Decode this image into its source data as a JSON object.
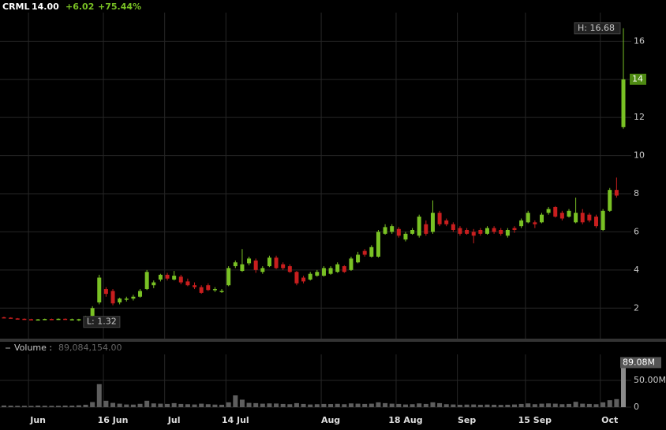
{
  "chart_data": {
    "type": "candlestick",
    "symbol": "CRML",
    "last": "14.00",
    "change": "+6.02",
    "change_pct": "+75.44%",
    "categories": [
      null,
      null,
      null,
      null,
      null,
      "Jun",
      null,
      null,
      null,
      null,
      null,
      null,
      null,
      null,
      null,
      null,
      "16 Jun",
      null,
      null,
      null,
      null,
      null,
      null,
      null,
      null,
      "Jul",
      null,
      null,
      null,
      null,
      null,
      null,
      null,
      null,
      "14 Jul",
      null,
      null,
      null,
      null,
      null,
      null,
      null,
      null,
      null,
      null,
      null,
      null,
      null,
      "Aug",
      null,
      null,
      null,
      null,
      null,
      null,
      null,
      null,
      null,
      null,
      "18 Aug",
      null,
      null,
      null,
      null,
      null,
      null,
      null,
      null,
      "Sep",
      null,
      null,
      null,
      null,
      null,
      null,
      null,
      null,
      null,
      "15 Sep",
      null,
      null,
      null,
      null,
      null,
      null,
      null,
      null,
      null,
      null,
      "Oct",
      null,
      null
    ],
    "open": [
      1.52,
      1.5,
      1.46,
      1.44,
      1.42,
      1.4,
      1.41,
      1.43,
      1.4,
      1.44,
      1.41,
      1.4,
      1.45,
      1.6,
      2.3,
      3.0,
      2.9,
      2.3,
      2.45,
      2.5,
      2.6,
      3.0,
      3.2,
      3.5,
      3.75,
      3.5,
      3.65,
      3.4,
      3.2,
      3.1,
      3.2,
      2.95,
      2.9,
      3.2,
      4.2,
      3.95,
      4.35,
      4.5,
      3.9,
      4.2,
      4.65,
      4.3,
      4.2,
      3.9,
      3.6,
      3.5,
      3.7,
      3.7,
      3.8,
      3.9,
      4.2,
      4.0,
      4.4,
      5.0,
      4.7,
      4.7,
      5.9,
      6.0,
      6.15,
      5.6,
      5.9,
      5.8,
      6.4,
      6.0,
      7.0,
      6.6,
      6.4,
      6.2,
      6.1,
      6.0,
      6.1,
      5.9,
      6.2,
      6.1,
      5.8,
      6.2,
      6.3,
      6.5,
      6.5,
      6.5,
      7.0,
      7.3,
      7.0,
      6.8,
      6.5,
      7.0,
      6.9,
      6.8,
      6.1,
      7.1,
      8.2,
      11.5
    ],
    "high": [
      1.55,
      1.52,
      1.48,
      1.46,
      1.44,
      1.43,
      1.45,
      1.45,
      1.46,
      1.46,
      1.45,
      1.44,
      1.6,
      2.1,
      3.75,
      3.1,
      3.0,
      2.55,
      2.6,
      2.7,
      3.0,
      4.0,
      3.45,
      3.8,
      3.85,
      3.95,
      3.75,
      3.55,
      3.35,
      3.2,
      3.3,
      3.1,
      3.0,
      4.2,
      4.5,
      5.1,
      4.7,
      4.6,
      4.2,
      4.75,
      4.75,
      4.4,
      4.3,
      3.95,
      3.7,
      3.9,
      4.0,
      4.2,
      4.2,
      4.4,
      4.25,
      4.7,
      4.95,
      5.1,
      5.3,
      6.1,
      6.4,
      6.4,
      6.25,
      6.0,
      6.2,
      6.9,
      6.6,
      7.65,
      7.1,
      6.7,
      6.5,
      6.3,
      6.2,
      6.15,
      6.2,
      6.3,
      6.3,
      6.2,
      6.2,
      6.3,
      6.7,
      7.1,
      6.6,
      7.0,
      7.3,
      7.35,
      7.1,
      7.2,
      7.8,
      7.2,
      7.0,
      6.9,
      7.2,
      8.3,
      8.85,
      16.68
    ],
    "low": [
      1.48,
      1.46,
      1.42,
      1.4,
      1.39,
      1.38,
      1.39,
      1.39,
      1.38,
      1.39,
      1.36,
      1.32,
      1.42,
      1.55,
      2.2,
      2.6,
      2.15,
      2.2,
      2.35,
      2.4,
      2.55,
      2.95,
      3.05,
      3.4,
      3.45,
      3.45,
      3.25,
      3.15,
      3.0,
      2.75,
      2.9,
      2.85,
      2.8,
      3.15,
      4.1,
      3.9,
      4.25,
      3.85,
      3.8,
      4.15,
      4.05,
      4.0,
      3.85,
      3.2,
      3.3,
      3.45,
      3.65,
      3.65,
      3.75,
      3.85,
      3.85,
      3.95,
      4.35,
      4.7,
      4.65,
      4.65,
      5.85,
      5.9,
      5.7,
      5.5,
      5.85,
      5.7,
      5.8,
      5.9,
      6.3,
      6.3,
      6.0,
      5.8,
      5.85,
      5.4,
      5.8,
      5.85,
      5.9,
      5.8,
      5.7,
      5.95,
      6.2,
      6.45,
      6.2,
      6.45,
      6.9,
      6.75,
      6.6,
      6.75,
      6.45,
      6.4,
      6.5,
      6.2,
      6.05,
      7.05,
      7.8,
      11.4
    ],
    "close": [
      1.5,
      1.47,
      1.44,
      1.42,
      1.41,
      1.41,
      1.43,
      1.4,
      1.44,
      1.41,
      1.42,
      1.42,
      1.55,
      2.0,
      3.6,
      2.75,
      2.25,
      2.5,
      2.5,
      2.6,
      2.9,
      3.9,
      3.35,
      3.75,
      3.55,
      3.7,
      3.35,
      3.2,
      3.1,
      2.8,
      2.95,
      3.0,
      2.9,
      4.1,
      4.4,
      4.3,
      4.6,
      4.0,
      4.1,
      4.65,
      4.1,
      4.1,
      3.9,
      3.3,
      3.4,
      3.8,
      3.9,
      4.1,
      4.1,
      4.3,
      3.9,
      4.6,
      4.8,
      4.8,
      5.2,
      6.0,
      6.25,
      6.3,
      5.8,
      5.9,
      6.1,
      6.8,
      5.9,
      7.0,
      6.4,
      6.4,
      6.1,
      5.9,
      5.9,
      5.8,
      5.9,
      6.2,
      6.0,
      5.9,
      6.1,
      6.1,
      6.6,
      7.0,
      6.4,
      6.9,
      7.2,
      6.8,
      6.7,
      7.1,
      7.0,
      6.5,
      6.6,
      6.3,
      7.1,
      8.2,
      7.9,
      14.0
    ],
    "up_color": "#79c124",
    "down_color": "#c81e1e",
    "ylim": [
      0.4,
      17.5
    ],
    "yticks": [
      2,
      4,
      6,
      8,
      10,
      12,
      14,
      16
    ],
    "grid": true,
    "high_label": "H: 16.68",
    "low_label": "L: 1.32",
    "last_price": 14,
    "volume": {
      "label": "Volume :",
      "header_value": "89,084,154.00",
      "color": "#5e5e5e",
      "values": [
        3100000,
        2800000,
        2500000,
        2600000,
        2400000,
        3000000,
        2700000,
        2500000,
        2600000,
        3000000,
        2900000,
        3500000,
        4500000,
        9500000,
        43000000,
        12000000,
        8000000,
        6500000,
        5000000,
        4800000,
        6200000,
        12000000,
        7000000,
        6500000,
        6000000,
        7500000,
        6000000,
        5500000,
        5000000,
        6500000,
        5500000,
        4800000,
        4500000,
        9000000,
        22000000,
        14000000,
        8000000,
        7500000,
        6500000,
        7000000,
        6800000,
        6000000,
        5500000,
        7500000,
        6000000,
        5000000,
        5500000,
        6000000,
        5800000,
        6200000,
        5500000,
        7000000,
        6500000,
        6000000,
        6500000,
        9000000,
        7500000,
        6500000,
        6000000,
        5000000,
        5500000,
        7000000,
        6000000,
        9000000,
        7500000,
        5500000,
        5000000,
        4500000,
        4800000,
        5000000,
        4500000,
        4800000,
        4500000,
        4200000,
        4500000,
        5000000,
        6000000,
        7000000,
        5500000,
        6500000,
        7000000,
        6500000,
        5500000,
        6000000,
        10000000,
        6500000,
        6000000,
        5500000,
        9000000,
        13000000,
        15000000,
        89084154
      ],
      "value_labels": [
        null,
        null,
        null,
        null,
        null,
        null,
        null,
        null,
        null,
        null,
        null,
        null,
        null,
        null,
        null,
        null,
        null,
        null,
        null,
        null,
        null,
        null,
        null,
        null,
        null,
        null,
        null,
        null,
        null,
        null,
        null,
        null,
        null,
        null,
        null,
        null,
        null,
        null,
        null,
        null,
        null,
        null,
        null,
        null,
        null,
        null,
        null,
        null,
        null,
        null,
        null,
        null,
        null,
        null,
        null,
        null,
        null,
        null,
        null,
        null,
        null,
        null,
        null,
        null,
        null,
        null,
        null,
        null,
        null,
        null,
        null,
        null,
        null,
        null,
        null,
        null,
        null,
        null,
        null,
        null,
        null,
        null,
        null,
        null,
        null,
        null,
        null,
        null,
        null,
        null,
        null,
        "89.08M"
      ],
      "ylim": [
        0,
        98500000
      ],
      "yticks": [
        0,
        {
          "value": 50000000,
          "label": "50.00M"
        }
      ]
    }
  }
}
